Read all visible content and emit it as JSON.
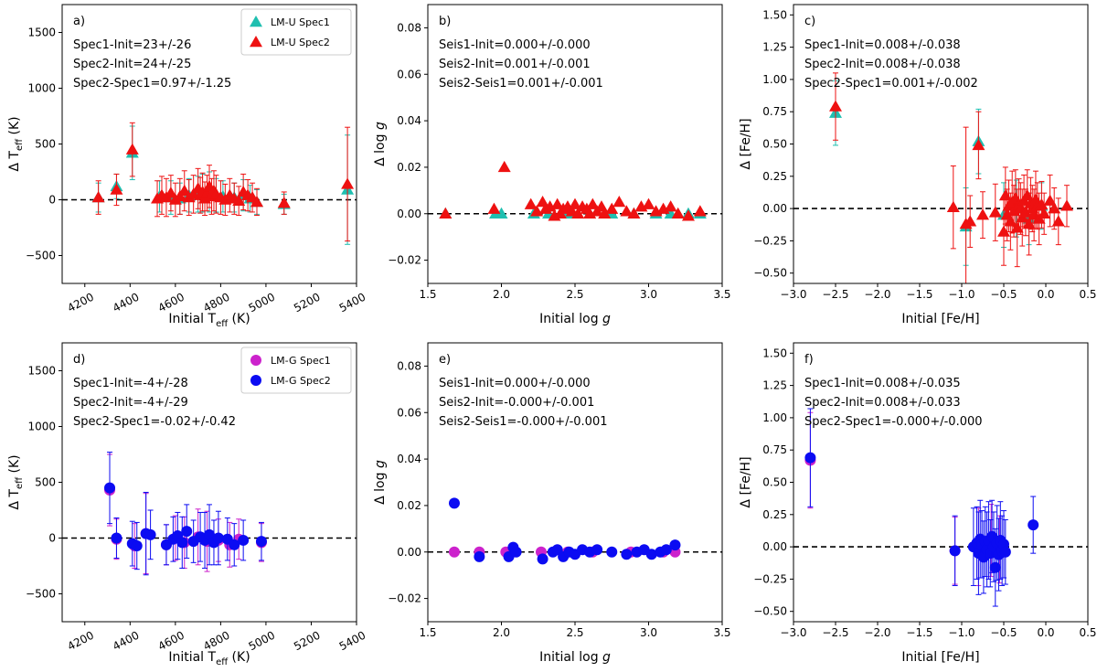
{
  "chart_data": [
    {
      "type": "scatter",
      "panel_label": "a)",
      "xlabel_main": "Initial T",
      "xlabel_sub": "eff",
      "xlabel_unit": " (K)",
      "ylabel_main": "Δ T",
      "ylabel_sub": "eff",
      "ylabel_unit": " (K)",
      "xlim": [
        4100,
        5400
      ],
      "ylim": [
        -750,
        1750
      ],
      "xticks": [
        "4200",
        "4400",
        "4600",
        "4800",
        "5000",
        "5200",
        "5400"
      ],
      "yticks": [
        "−500",
        "0",
        "500",
        "1000",
        "1500"
      ],
      "annotations": [
        "Spec1-Init=23+/-26",
        "Spec2-Init=24+/-25",
        "Spec2-Spec1=0.97+/-1.25"
      ],
      "legend": {
        "position": "top-right",
        "entries": [
          "LM-U Spec1",
          "LM-U Spec2"
        ]
      },
      "reference_line": 0,
      "series": [
        {
          "name": "LM-U Spec1",
          "color": "#1fbfb0",
          "marker": "triangle",
          "x": [
            4260,
            4340,
            4410,
            4530,
            4580,
            4620,
            4660,
            4700,
            4720,
            4750,
            4780,
            4810,
            4860,
            4900,
            4930,
            4960,
            5080,
            5360
          ],
          "y": [
            20,
            120,
            420,
            30,
            20,
            10,
            40,
            50,
            60,
            70,
            40,
            30,
            20,
            40,
            10,
            -20,
            -40,
            90
          ],
          "err": [
            130,
            110,
            240,
            140,
            150,
            140,
            150,
            160,
            170,
            180,
            150,
            140,
            130,
            140,
            120,
            110,
            90,
            490
          ]
        },
        {
          "name": "LM-U Spec2",
          "color": "#ee1111",
          "marker": "triangle",
          "x": [
            4260,
            4340,
            4410,
            4520,
            4540,
            4560,
            4580,
            4600,
            4620,
            4640,
            4660,
            4680,
            4700,
            4710,
            4720,
            4730,
            4740,
            4750,
            4760,
            4770,
            4780,
            4800,
            4820,
            4840,
            4860,
            4880,
            4900,
            4920,
            4940,
            4960,
            5080,
            5360
          ],
          "y": [
            20,
            90,
            450,
            10,
            40,
            20,
            60,
            0,
            30,
            80,
            20,
            50,
            100,
            40,
            70,
            10,
            60,
            120,
            30,
            80,
            50,
            20,
            0,
            40,
            10,
            -10,
            70,
            40,
            20,
            -20,
            -30,
            140
          ],
          "err": [
            150,
            140,
            240,
            160,
            170,
            170,
            160,
            150,
            160,
            180,
            160,
            170,
            180,
            160,
            170,
            150,
            160,
            190,
            160,
            180,
            170,
            150,
            140,
            150,
            140,
            130,
            160,
            140,
            130,
            120,
            100,
            510
          ]
        }
      ]
    },
    {
      "type": "scatter",
      "panel_label": "b)",
      "xlabel_main": "Initial log ",
      "xlabel_sub": "",
      "xlabel_italic": "g",
      "ylabel_main": "Δ log ",
      "ylabel_italic": "g",
      "xlim": [
        1.5,
        3.5
      ],
      "ylim": [
        -0.03,
        0.09
      ],
      "xticks": [
        "1.5",
        "2.0",
        "2.5",
        "3.0",
        "3.5"
      ],
      "yticks": [
        "−0.02",
        "0.00",
        "0.02",
        "0.04",
        "0.06",
        "0.08"
      ],
      "annotations": [
        "Seis1-Init=0.000+/-0.000",
        "Seis2-Init=0.001+/-0.001",
        "Seis2-Seis1=0.001+/-0.001"
      ],
      "reference_line": 0,
      "series": [
        {
          "name": "LM-U Spec1",
          "color": "#1fbfb0",
          "marker": "triangle",
          "x": [
            1.62,
            1.96,
            2.0,
            2.22,
            2.32,
            2.45,
            2.6,
            2.75,
            2.9,
            3.05,
            3.15,
            3.27,
            3.35
          ],
          "y": [
            0.0,
            0.0,
            0.0,
            0.0,
            0.0,
            0.0,
            0.0,
            0.0,
            0.0,
            0.0,
            0.0,
            0.0,
            0.0
          ]
        },
        {
          "name": "LM-U Spec2",
          "color": "#ee1111",
          "marker": "triangle",
          "x": [
            1.62,
            1.95,
            2.02,
            2.2,
            2.24,
            2.28,
            2.3,
            2.33,
            2.36,
            2.38,
            2.4,
            2.42,
            2.45,
            2.48,
            2.5,
            2.52,
            2.55,
            2.58,
            2.6,
            2.62,
            2.65,
            2.68,
            2.7,
            2.75,
            2.8,
            2.85,
            2.9,
            2.95,
            3.0,
            3.05,
            3.1,
            3.15,
            3.2,
            3.27,
            3.35
          ],
          "y": [
            0.0,
            0.002,
            0.02,
            0.004,
            0.001,
            0.005,
            0.002,
            0.003,
            -0.001,
            0.004,
            0.0,
            0.002,
            0.003,
            0.001,
            0.004,
            0.0,
            0.003,
            0.002,
            0.0,
            0.004,
            0.001,
            0.003,
            0.0,
            0.002,
            0.005,
            0.001,
            0.0,
            0.003,
            0.004,
            0.001,
            0.002,
            0.003,
            0.0,
            -0.001,
            0.001
          ]
        }
      ]
    },
    {
      "type": "scatter",
      "panel_label": "c)",
      "xlabel_main": "Initial [Fe/H]",
      "ylabel_main": "Δ [Fe/H]",
      "xlim": [
        -3.0,
        0.5
      ],
      "ylim": [
        -0.58,
        1.58
      ],
      "xticks": [
        "−3.0",
        "−2.5",
        "−2.0",
        "−1.5",
        "−1.0",
        "−0.5",
        "0.0",
        "0.5"
      ],
      "yticks": [
        "−0.50",
        "−0.25",
        "0.00",
        "0.25",
        "0.50",
        "0.75",
        "1.00",
        "1.25",
        "1.50"
      ],
      "annotations": [
        "Spec1-Init=0.008+/-0.038",
        "Spec2-Init=0.008+/-0.038",
        "Spec2-Spec1=0.001+/-0.002"
      ],
      "reference_line": 0,
      "series": [
        {
          "name": "LM-U Spec1",
          "color": "#1fbfb0",
          "marker": "triangle",
          "x": [
            -2.5,
            -0.95,
            -0.8,
            -0.5,
            -0.35,
            -0.2,
            -0.05
          ],
          "y": [
            0.74,
            -0.14,
            0.52,
            -0.05,
            0.0,
            -0.08,
            0.02
          ],
          "err": [
            0.25,
            0.3,
            0.25,
            0.25,
            0.22,
            0.2,
            0.18
          ]
        },
        {
          "name": "LM-U Spec2",
          "color": "#ee1111",
          "marker": "triangle",
          "x": [
            -2.5,
            -1.1,
            -0.95,
            -0.9,
            -0.8,
            -0.75,
            -0.6,
            -0.5,
            -0.48,
            -0.46,
            -0.44,
            -0.42,
            -0.4,
            -0.38,
            -0.36,
            -0.34,
            -0.32,
            -0.3,
            -0.28,
            -0.26,
            -0.24,
            -0.22,
            -0.2,
            -0.18,
            -0.16,
            -0.14,
            -0.12,
            -0.1,
            -0.08,
            -0.05,
            -0.02,
            0.05,
            0.1,
            0.15,
            0.25
          ],
          "y": [
            0.79,
            0.01,
            -0.12,
            -0.1,
            0.49,
            -0.05,
            -0.03,
            -0.18,
            0.1,
            -0.05,
            0.02,
            -0.1,
            0.05,
            -0.02,
            0.08,
            -0.15,
            0.03,
            0.0,
            -0.07,
            0.06,
            -0.03,
            0.1,
            -0.12,
            0.04,
            0.0,
            -0.05,
            0.07,
            0.02,
            -0.08,
            0.03,
            -0.04,
            0.06,
            0.0,
            -0.1,
            0.02
          ],
          "err": [
            0.26,
            0.32,
            0.75,
            0.2,
            0.26,
            0.18,
            0.22,
            0.26,
            0.22,
            0.2,
            0.2,
            0.22,
            0.24,
            0.2,
            0.22,
            0.3,
            0.2,
            0.2,
            0.22,
            0.2,
            0.18,
            0.2,
            0.24,
            0.2,
            0.18,
            0.2,
            0.22,
            0.18,
            0.2,
            0.18,
            0.16,
            0.2,
            0.16,
            0.18,
            0.16
          ]
        }
      ]
    },
    {
      "type": "scatter",
      "panel_label": "d)",
      "xlabel_main": "Initial T",
      "xlabel_sub": "eff",
      "xlabel_unit": " (K)",
      "ylabel_main": "Δ T",
      "ylabel_sub": "eff",
      "ylabel_unit": " (K)",
      "xlim": [
        4100,
        5400
      ],
      "ylim": [
        -750,
        1750
      ],
      "xticks": [
        "4200",
        "4400",
        "4600",
        "4800",
        "5000",
        "5200",
        "5400"
      ],
      "yticks": [
        "−500",
        "0",
        "500",
        "1000",
        "1500"
      ],
      "annotations": [
        "Spec1-Init=-4+/-28",
        "Spec2-Init=-4+/-29",
        "Spec2-Spec1=-0.02+/-0.42"
      ],
      "legend": {
        "position": "top-right",
        "entries": [
          "LM-G Spec1",
          "LM-G Spec2"
        ]
      },
      "reference_line": 0,
      "series": [
        {
          "name": "LM-G Spec1",
          "color": "#cc22cc",
          "marker": "circle",
          "x": [
            4310,
            4340,
            4420,
            4470,
            4560,
            4600,
            4640,
            4700,
            4740,
            4790,
            4840,
            4880,
            4980
          ],
          "y": [
            430,
            -10,
            -70,
            40,
            -60,
            0,
            -40,
            10,
            -30,
            -20,
            -60,
            -10,
            -40
          ],
          "err": [
            320,
            180,
            200,
            360,
            180,
            200,
            230,
            250,
            270,
            190,
            200,
            180,
            170
          ]
        },
        {
          "name": "LM-G Spec2",
          "color": "#0b0bf2",
          "marker": "circle",
          "x": [
            4310,
            4340,
            4410,
            4430,
            4470,
            4490,
            4560,
            4590,
            4610,
            4630,
            4650,
            4680,
            4710,
            4730,
            4750,
            4770,
            4790,
            4830,
            4860,
            4900,
            4980
          ],
          "y": [
            450,
            0,
            -50,
            -70,
            40,
            30,
            -60,
            -10,
            20,
            -40,
            60,
            -30,
            10,
            -20,
            30,
            -40,
            0,
            -10,
            -60,
            -20,
            -30
          ],
          "err": [
            320,
            180,
            200,
            210,
            370,
            220,
            180,
            200,
            210,
            230,
            240,
            190,
            220,
            250,
            270,
            200,
            240,
            190,
            190,
            180,
            170
          ]
        }
      ]
    },
    {
      "type": "scatter",
      "panel_label": "e)",
      "xlabel_main": "Initial log ",
      "xlabel_italic": "g",
      "ylabel_main": "Δ log ",
      "ylabel_italic": "g",
      "xlim": [
        1.5,
        3.5
      ],
      "ylim": [
        -0.03,
        0.09
      ],
      "xticks": [
        "1.5",
        "2.0",
        "2.5",
        "3.0",
        "3.5"
      ],
      "yticks": [
        "−0.02",
        "0.00",
        "0.02",
        "0.04",
        "0.06",
        "0.08"
      ],
      "annotations": [
        "Seis1-Init=0.000+/-0.000",
        "Seis2-Init=-0.000+/-0.001",
        "Seis2-Seis1=-0.000+/-0.001"
      ],
      "reference_line": 0,
      "series": [
        {
          "name": "LM-G Spec1",
          "color": "#cc22cc",
          "marker": "circle",
          "x": [
            1.68,
            1.85,
            2.03,
            2.27,
            2.45,
            2.62,
            2.88,
            3.1,
            3.18
          ],
          "y": [
            0.0,
            0.0,
            0.0,
            0.0,
            0.0,
            0.0,
            0.0,
            0.0,
            0.0
          ]
        },
        {
          "name": "LM-G Spec2",
          "color": "#0b0bf2",
          "marker": "circle",
          "x": [
            1.68,
            1.85,
            2.05,
            2.08,
            2.1,
            2.28,
            2.35,
            2.38,
            2.42,
            2.46,
            2.5,
            2.55,
            2.6,
            2.65,
            2.75,
            2.85,
            2.92,
            2.97,
            3.02,
            3.08,
            3.12,
            3.18
          ],
          "y": [
            0.021,
            -0.002,
            -0.002,
            0.002,
            0.0,
            -0.003,
            0.0,
            0.001,
            -0.002,
            0.0,
            -0.001,
            0.001,
            0.0,
            0.001,
            0.0,
            -0.001,
            0.0,
            0.001,
            -0.001,
            0.0,
            0.001,
            0.003
          ]
        }
      ]
    },
    {
      "type": "scatter",
      "panel_label": "f)",
      "xlabel_main": "Initial [Fe/H]",
      "ylabel_main": "Δ [Fe/H]",
      "xlim": [
        -3.0,
        0.5
      ],
      "ylim": [
        -0.58,
        1.58
      ],
      "xticks": [
        "−3.0",
        "−2.5",
        "−2.0",
        "−1.5",
        "−1.0",
        "−0.5",
        "0.0",
        "0.5"
      ],
      "yticks": [
        "−0.50",
        "−0.25",
        "0.00",
        "0.25",
        "0.50",
        "0.75",
        "1.00",
        "1.25",
        "1.50"
      ],
      "annotations": [
        "Spec1-Init=0.008+/-0.035",
        "Spec2-Init=0.008+/-0.033",
        "Spec2-Spec1=-0.000+/-0.000"
      ],
      "reference_line": 0,
      "series": [
        {
          "name": "LM-G Spec1",
          "color": "#cc22cc",
          "marker": "circle",
          "x": [
            -2.8,
            -1.08,
            -0.8,
            -0.65,
            -0.55
          ],
          "y": [
            0.67,
            -0.03,
            0.0,
            0.05,
            -0.02
          ],
          "err": [
            0.37,
            0.26,
            0.3,
            0.28,
            0.26
          ]
        },
        {
          "name": "LM-G Spec2",
          "color": "#0b0bf2",
          "marker": "circle",
          "x": [
            -2.8,
            -1.08,
            -0.86,
            -0.82,
            -0.8,
            -0.78,
            -0.76,
            -0.74,
            -0.72,
            -0.7,
            -0.68,
            -0.66,
            -0.64,
            -0.62,
            -0.6,
            -0.58,
            -0.56,
            -0.54,
            -0.52,
            -0.5,
            -0.48,
            -0.15
          ],
          "y": [
            0.69,
            -0.03,
            0.0,
            0.03,
            -0.05,
            0.06,
            0.02,
            -0.08,
            0.04,
            -0.02,
            0.05,
            -0.05,
            0.08,
            0.0,
            -0.16,
            0.03,
            -0.06,
            0.05,
            -0.03,
            0.02,
            -0.04,
            0.17
          ],
          "err": [
            0.38,
            0.27,
            0.3,
            0.28,
            0.32,
            0.3,
            0.26,
            0.28,
            0.27,
            0.29,
            0.3,
            0.26,
            0.28,
            0.27,
            0.3,
            0.29,
            0.28,
            0.3,
            0.27,
            0.26,
            0.25,
            0.22
          ]
        }
      ]
    }
  ]
}
